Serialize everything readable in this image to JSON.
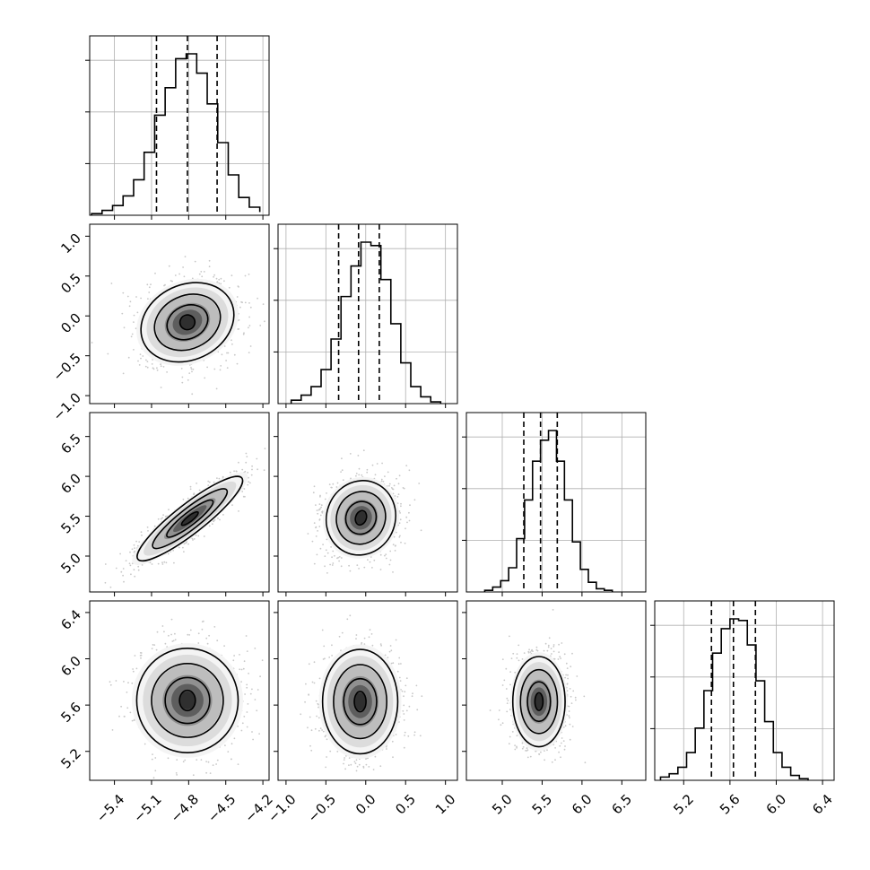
{
  "chart_data": {
    "type": "corner",
    "grid": true,
    "params": [
      {
        "lim": [
          -5.6,
          -4.15
        ],
        "ticks": [
          -5.4,
          -5.1,
          -4.8,
          -4.5,
          -4.2
        ],
        "tick_labels": [
          "−5.4",
          "−5.1",
          "−4.8",
          "−4.5",
          "−4.2"
        ],
        "quantiles": [
          -5.06,
          -4.81,
          -4.57
        ]
      },
      {
        "lim": [
          -1.1,
          1.15
        ],
        "ticks": [
          -1.0,
          -0.5,
          0.0,
          0.5,
          1.0
        ],
        "tick_labels": [
          "−1.0",
          "−0.5",
          "0.0",
          "0.5",
          "1.0"
        ],
        "quantiles": [
          -0.34,
          -0.09,
          0.17
        ]
      },
      {
        "lim": [
          4.55,
          6.8
        ],
        "ticks": [
          5.0,
          5.5,
          6.0,
          6.5
        ],
        "tick_labels": [
          "5.0",
          "5.5",
          "6.0",
          "6.5"
        ],
        "quantiles": [
          5.27,
          5.48,
          5.69
        ]
      },
      {
        "lim": [
          4.95,
          6.5
        ],
        "ticks": [
          5.2,
          5.6,
          6.0,
          6.4
        ],
        "tick_labels": [
          "5.2",
          "5.6",
          "6.0",
          "6.4"
        ],
        "quantiles": [
          5.44,
          5.63,
          5.82
        ]
      }
    ],
    "histograms": [
      {
        "bin_edges": [
          -5.585,
          -5.5,
          -5.415,
          -5.33,
          -5.245,
          -5.16,
          -5.075,
          -4.99,
          -4.905,
          -4.82,
          -4.735,
          -4.65,
          -4.565,
          -4.48,
          -4.395,
          -4.31,
          -4.225
        ],
        "counts": [
          0.01,
          0.03,
          0.06,
          0.12,
          0.22,
          0.39,
          0.62,
          0.79,
          0.97,
          1.0,
          0.88,
          0.69,
          0.45,
          0.25,
          0.11,
          0.05,
          0.02
        ]
      },
      {
        "bin_edges": [
          -0.935,
          -0.81,
          -0.685,
          -0.56,
          -0.435,
          -0.31,
          -0.185,
          -0.06,
          0.065,
          0.19,
          0.315,
          0.44,
          0.565,
          0.69,
          0.815,
          0.94
        ],
        "counts": [
          0.02,
          0.05,
          0.1,
          0.2,
          0.38,
          0.63,
          0.81,
          0.95,
          0.93,
          0.73,
          0.47,
          0.24,
          0.1,
          0.04,
          0.01
        ]
      },
      {
        "bin_edges": [
          4.78,
          4.88,
          4.98,
          5.08,
          5.18,
          5.28,
          5.38,
          5.48,
          5.58,
          5.68,
          5.78,
          5.88,
          5.98,
          6.08,
          6.18,
          6.28,
          6.38
        ],
        "counts": [
          0.01,
          0.03,
          0.07,
          0.15,
          0.33,
          0.57,
          0.81,
          0.94,
          1.0,
          0.81,
          0.57,
          0.31,
          0.14,
          0.06,
          0.02,
          0.01
        ]
      },
      {
        "bin_edges": [
          5.0,
          5.075,
          5.15,
          5.225,
          5.3,
          5.375,
          5.45,
          5.525,
          5.6,
          5.675,
          5.75,
          5.825,
          5.9,
          5.975,
          6.05,
          6.125,
          6.2,
          6.275
        ],
        "counts": [
          0.02,
          0.04,
          0.08,
          0.17,
          0.32,
          0.55,
          0.78,
          0.93,
          0.99,
          0.98,
          0.83,
          0.61,
          0.36,
          0.17,
          0.08,
          0.03,
          0.01
        ]
      }
    ],
    "pairs": [
      {
        "x_index": 0,
        "y_index": 1,
        "center": [
          -4.81,
          -0.08
        ],
        "sigma": [
          0.19,
          0.23
        ],
        "angle_deg": -25
      },
      {
        "x_index": 0,
        "y_index": 2,
        "center": [
          -4.79,
          5.47
        ],
        "sigma": [
          0.26,
          0.09
        ],
        "angle_deg": -38
      },
      {
        "x_index": 1,
        "y_index": 2,
        "center": [
          -0.06,
          5.48
        ],
        "sigma": [
          0.21,
          0.23
        ],
        "angle_deg": 20
      },
      {
        "x_index": 0,
        "y_index": 3,
        "center": [
          -4.81,
          5.64
        ],
        "sigma": [
          0.2,
          0.22
        ],
        "angle_deg": 0
      },
      {
        "x_index": 1,
        "y_index": 3,
        "center": [
          -0.07,
          5.63
        ],
        "sigma": [
          0.23,
          0.22
        ],
        "angle_deg": 0
      },
      {
        "x_index": 2,
        "y_index": 3,
        "center": [
          5.46,
          5.63
        ],
        "sigma": [
          0.16,
          0.19
        ],
        "angle_deg": 0
      }
    ]
  }
}
